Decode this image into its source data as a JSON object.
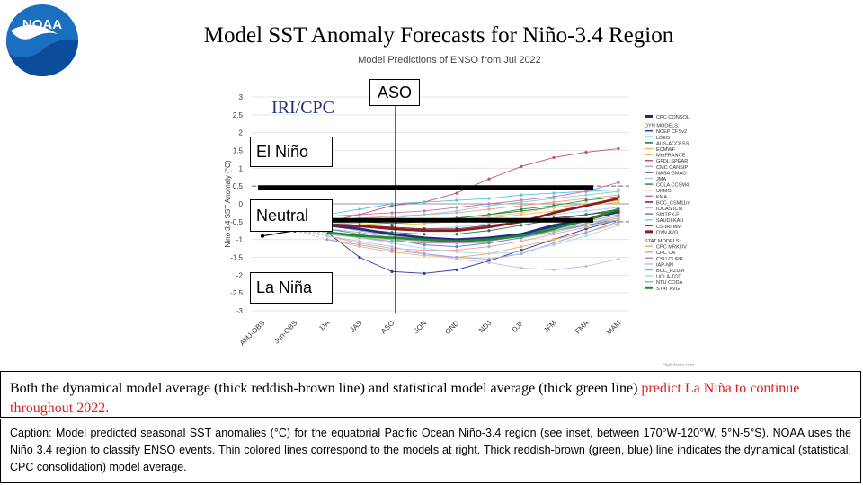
{
  "title": "Model SST Anomaly Forecasts for Niño-3.4 Region",
  "summary": {
    "part1": "Both the dynamical model average (thick reddish-brown line) and statistical model average (thick green line) ",
    "highlight": "predict La Niña to continue throughout 2022.",
    "highlight_color": "#e0201b"
  },
  "caption": "Caption: Model predicted seasonal SST anomalies (°C) for the equatorial Pacific Ocean Niño-3.4 region (see inset, between 170°W-120°W, 5°N-5°S). NOAA uses the Niño 3.4 region to classify ENSO events. Thin colored lines correspond to the models at right. Thick reddish-brown (green, blue) line indicates the dynamical (statistical, CPC consolidation) model average.",
  "overlay_labels": {
    "el_nino": "El Niño",
    "neutral": "Neutral",
    "la_nina": "La Niña",
    "aso": "ASO"
  },
  "chart_data": {
    "type": "line",
    "title": "Model Predictions of ENSO from Jul 2022",
    "watermark": "IRI/CPC",
    "credit": "Highcharts.com",
    "ylabel": "Nino 3.4 SST Anomaly (°C)",
    "ylim": [
      -3,
      3
    ],
    "yticks": [
      "3",
      "2.5",
      "2",
      "1.5",
      "1",
      "0.5",
      "0",
      "-0.5",
      "-1",
      "-1.5",
      "-2",
      "-2.5",
      "-3"
    ],
    "categories": [
      "AMJ-OBS",
      "Jun-OBS",
      "JJA",
      "JAS",
      "ASO",
      "SON",
      "OND",
      "NDJ",
      "DJF",
      "JFM",
      "FMA",
      "MAM"
    ],
    "thresholds": [
      0.5,
      -0.5
    ],
    "observed": {
      "x": [
        "AMJ-OBS",
        "Jun-OBS"
      ],
      "y": [
        -0.9,
        -0.75
      ]
    },
    "legend_position": "right",
    "legend": {
      "consol_header": "CPC CONSOL",
      "dyn_header": "DYN MODELS:",
      "dyn": [
        "NCEP CFSv2",
        "LDEO",
        "AUS-ACCESS",
        "ECMWF",
        "MetFRANCE",
        "GFDL SPEAR",
        "CMC CANSIP",
        "NASA GMAO",
        "JMA",
        "COLA CCSM4",
        "UKMO",
        "KMA",
        "BCC_CSM11m",
        "IOCAS ICM",
        "SINTEX-F",
        "SAUDI-KAU",
        "CS-IRI-MM",
        "DYN AVG"
      ],
      "stat_header": "STAT MODELS:",
      "stat": [
        "CPC MRKOV",
        "CPC CA",
        "CSU CLIPR",
        "IAP-NN",
        "BCC_RZDM",
        "UCLA-TCD",
        "NTU CODA",
        "STAT AVG"
      ]
    },
    "series": [
      {
        "name": "CPC CONSOL",
        "color": "#1f2d8a",
        "width": 3,
        "y": [
          null,
          null,
          -0.6,
          -0.7,
          -0.85,
          -0.95,
          -1.0,
          -0.95,
          -0.85,
          -0.6,
          -0.45,
          -0.2
        ]
      },
      {
        "name": "DYN AVG",
        "color": "#8b1c1c",
        "width": 3,
        "y": [
          null,
          null,
          -0.6,
          -0.62,
          -0.7,
          -0.75,
          -0.75,
          -0.65,
          -0.5,
          -0.25,
          -0.05,
          0.15
        ]
      },
      {
        "name": "STAT AVG",
        "color": "#1f8a2a",
        "width": 3,
        "y": [
          null,
          null,
          -0.8,
          -0.9,
          -0.95,
          -1.0,
          -1.05,
          -1.0,
          -0.9,
          -0.7,
          -0.45,
          -0.15
        ]
      },
      {
        "name": "GFDL SPEAR",
        "color": "#c0506e",
        "width": 1,
        "y": [
          null,
          null,
          -0.5,
          -0.3,
          -0.05,
          0.05,
          0.3,
          0.7,
          1.05,
          1.3,
          1.45,
          1.55
        ]
      },
      {
        "name": "NCEP CFSv2",
        "color": "#2a3a9a",
        "width": 1,
        "y": [
          null,
          null,
          -0.8,
          -1.5,
          -1.9,
          -1.95,
          -1.85,
          -1.6,
          -1.3,
          -1.0,
          -0.7,
          -0.45
        ]
      },
      {
        "name": "LDEO",
        "color": "#55c0e8",
        "width": 1,
        "y": [
          null,
          null,
          -0.3,
          -0.15,
          0.0,
          0.05,
          0.1,
          0.15,
          0.25,
          0.3,
          0.35,
          0.4
        ]
      },
      {
        "name": "AUS-ACCESS",
        "color": "#1a7a3a",
        "width": 1,
        "y": [
          null,
          null,
          -0.4,
          -0.45,
          -0.5,
          -0.45,
          -0.4,
          -0.3,
          -0.2,
          -0.1,
          0.0,
          0.1
        ]
      },
      {
        "name": "ECMWF",
        "color": "#e8c04a",
        "width": 1,
        "y": [
          null,
          null,
          -0.5,
          -0.55,
          -0.6,
          -0.55,
          -0.5,
          -0.4,
          -0.3,
          -0.2,
          -0.05,
          0.05
        ]
      },
      {
        "name": "MetFRANCE",
        "color": "#f0a070",
        "width": 1,
        "y": [
          null,
          null,
          -0.45,
          -0.4,
          -0.35,
          -0.3,
          -0.25,
          -0.15,
          -0.05,
          0.05,
          0.15,
          0.25
        ]
      },
      {
        "name": "CMC CANSIP",
        "color": "#b0b0c8",
        "width": 1,
        "y": [
          null,
          null,
          -0.7,
          -0.8,
          -0.95,
          -1.05,
          -1.1,
          -1.1,
          -0.95,
          -0.8,
          -0.6,
          -0.4
        ]
      },
      {
        "name": "NASA GMAO",
        "color": "#1a2a7a",
        "width": 1,
        "y": [
          null,
          null,
          -0.6,
          -0.75,
          -0.9,
          -1.0,
          -1.05,
          -1.0,
          -0.85,
          -0.65,
          -0.45,
          -0.25
        ]
      },
      {
        "name": "JMA",
        "color": "#9fd0f0",
        "width": 1,
        "y": [
          null,
          null,
          -0.5,
          -0.6,
          -0.7,
          -0.7,
          -0.65,
          -0.55,
          -0.45,
          -0.3,
          -0.2,
          -0.1
        ]
      },
      {
        "name": "COLA CCSM4",
        "color": "#2a8a4a",
        "width": 1,
        "y": [
          null,
          null,
          -0.45,
          -0.5,
          -0.55,
          -0.5,
          -0.4,
          -0.3,
          -0.15,
          -0.05,
          0.1,
          0.2
        ]
      },
      {
        "name": "UKMO",
        "color": "#f0c088",
        "width": 1,
        "y": [
          null,
          null,
          -0.4,
          -0.45,
          -0.5,
          -0.5,
          -0.45,
          -0.35,
          -0.25,
          -0.1,
          0.0,
          0.1
        ]
      },
      {
        "name": "KMA",
        "color": "#d070a8",
        "width": 1,
        "y": [
          null,
          null,
          -0.35,
          -0.3,
          -0.25,
          -0.2,
          -0.1,
          0.0,
          0.1,
          0.2,
          0.35,
          0.6
        ]
      },
      {
        "name": "BCC_CSM11m",
        "color": "#7a1a3a",
        "width": 1,
        "y": [
          null,
          null,
          -0.55,
          -0.6,
          -0.65,
          -0.7,
          -0.7,
          -0.6,
          -0.5,
          -0.4,
          -0.3,
          -0.2
        ]
      },
      {
        "name": "IOCAS ICM",
        "color": "#c0c0c0",
        "width": 1,
        "y": [
          null,
          null,
          -0.6,
          -0.75,
          -0.9,
          -1.0,
          -1.0,
          -0.95,
          -0.85,
          -0.7,
          -0.55,
          -0.4
        ]
      },
      {
        "name": "SINTEX-F",
        "color": "#5a8ac8",
        "width": 1,
        "y": [
          null,
          null,
          -0.7,
          -0.85,
          -1.0,
          -1.15,
          -1.2,
          -1.1,
          -0.95,
          -0.75,
          -0.6,
          -0.45
        ]
      },
      {
        "name": "SAUDI-KAU",
        "color": "#7ad0e0",
        "width": 1,
        "y": [
          null,
          null,
          -0.5,
          -0.45,
          -0.4,
          -0.3,
          -0.2,
          -0.05,
          0.05,
          0.15,
          0.25,
          0.35
        ]
      },
      {
        "name": "CS-IRI-MM",
        "color": "#2a7a5a",
        "width": 1,
        "y": [
          null,
          null,
          -0.6,
          -0.7,
          -0.8,
          -0.85,
          -0.85,
          -0.75,
          -0.6,
          -0.45,
          -0.3,
          -0.15
        ]
      },
      {
        "name": "CPC MRKOV",
        "color": "#f0b060",
        "width": 1,
        "y": [
          null,
          null,
          -1.0,
          -1.2,
          -1.35,
          -1.45,
          -1.5,
          -1.4,
          -1.2,
          -1.0,
          -0.8,
          -0.55
        ]
      },
      {
        "name": "CPC CA",
        "color": "#e8a0a0",
        "width": 1,
        "y": [
          null,
          null,
          -0.9,
          -1.1,
          -1.25,
          -1.3,
          -1.3,
          -1.2,
          -1.05,
          -0.85,
          -0.65,
          -0.45
        ]
      },
      {
        "name": "CSU CLIPR",
        "color": "#c080c0",
        "width": 1,
        "y": [
          null,
          null,
          -0.8,
          -0.95,
          -1.05,
          -1.1,
          -1.1,
          -1.05,
          -0.9,
          -0.7,
          -0.5,
          -0.3
        ]
      },
      {
        "name": "IAP-NN",
        "color": "#c0c0d8",
        "width": 1,
        "y": [
          null,
          null,
          -0.9,
          -1.05,
          -1.2,
          -1.4,
          -1.55,
          -1.65,
          -1.8,
          -1.85,
          -1.75,
          -1.55
        ]
      },
      {
        "name": "BCC_RZDM",
        "color": "#a0a0e0",
        "width": 1,
        "y": [
          null,
          null,
          -1.0,
          -1.15,
          -1.3,
          -1.4,
          -1.5,
          -1.55,
          -1.4,
          -1.1,
          -0.8,
          -0.5
        ]
      },
      {
        "name": "UCLA-TCD",
        "color": "#a8d8f0",
        "width": 1,
        "y": [
          null,
          null,
          -0.8,
          -0.95,
          -1.1,
          -1.25,
          -1.35,
          -1.4,
          -1.35,
          -1.15,
          -0.9,
          -0.6
        ]
      },
      {
        "name": "NTU CODA",
        "color": "#90c090",
        "width": 1,
        "y": [
          null,
          null,
          -0.85,
          -0.95,
          -1.0,
          -1.05,
          -1.05,
          -1.0,
          -0.9,
          -0.75,
          -0.55,
          -0.35
        ]
      }
    ]
  }
}
